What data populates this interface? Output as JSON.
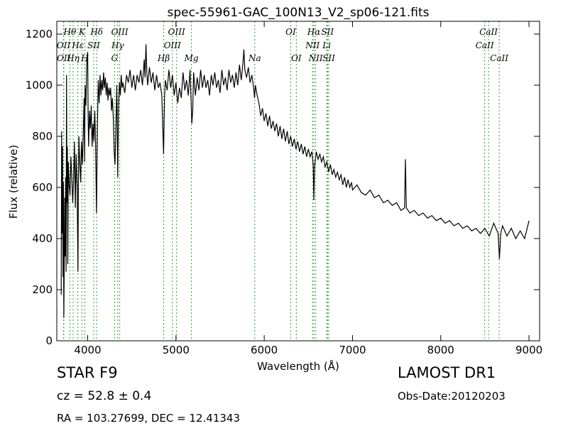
{
  "chart_data": {
    "type": "line",
    "title": "spec-55961-GAC_100N13_V2_sp06-121.fits",
    "xlabel": "Wavelength (Å)",
    "ylabel": "Flux (relative)",
    "xlim": [
      3650,
      9120
    ],
    "ylim": [
      0,
      1250
    ],
    "xticks": [
      4000,
      5000,
      6000,
      7000,
      8000,
      9000
    ],
    "yticks": [
      0,
      200,
      400,
      600,
      800,
      1000,
      1200
    ],
    "grid": false,
    "series": [
      {
        "color": "#000000",
        "points": [
          [
            3700,
            180
          ],
          [
            3705,
            820
          ],
          [
            3710,
            420
          ],
          [
            3715,
            760
          ],
          [
            3720,
            250
          ],
          [
            3725,
            620
          ],
          [
            3730,
            90
          ],
          [
            3740,
            560
          ],
          [
            3745,
            330
          ],
          [
            3750,
            640
          ],
          [
            3755,
            270
          ],
          [
            3760,
            1040
          ],
          [
            3765,
            540
          ],
          [
            3770,
            760
          ],
          [
            3775,
            300
          ],
          [
            3780,
            700
          ],
          [
            3790,
            610
          ],
          [
            3800,
            570
          ],
          [
            3810,
            720
          ],
          [
            3820,
            640
          ],
          [
            3830,
            540
          ],
          [
            3840,
            630
          ],
          [
            3850,
            780
          ],
          [
            3860,
            520
          ],
          [
            3870,
            730
          ],
          [
            3880,
            610
          ],
          [
            3890,
            270
          ],
          [
            3895,
            640
          ],
          [
            3900,
            800
          ],
          [
            3910,
            700
          ],
          [
            3920,
            620
          ],
          [
            3930,
            780
          ],
          [
            3940,
            690
          ],
          [
            3950,
            820
          ],
          [
            3960,
            950
          ],
          [
            3965,
            700
          ],
          [
            3970,
            1000
          ],
          [
            3980,
            920
          ],
          [
            3990,
            1100
          ],
          [
            4000,
            1130
          ],
          [
            4005,
            880
          ],
          [
            4010,
            760
          ],
          [
            4020,
            900
          ],
          [
            4030,
            830
          ],
          [
            4040,
            920
          ],
          [
            4050,
            760
          ],
          [
            4060,
            850
          ],
          [
            4070,
            780
          ],
          [
            4080,
            900
          ],
          [
            4090,
            760
          ],
          [
            4100,
            500
          ],
          [
            4110,
            840
          ],
          [
            4120,
            1020
          ],
          [
            4130,
            930
          ],
          [
            4140,
            1040
          ],
          [
            4150,
            960
          ],
          [
            4160,
            1020
          ],
          [
            4170,
            980
          ],
          [
            4180,
            1050
          ],
          [
            4190,
            990
          ],
          [
            4200,
            1030
          ],
          [
            4210,
            960
          ],
          [
            4220,
            1010
          ],
          [
            4230,
            940
          ],
          [
            4240,
            990
          ],
          [
            4250,
            960
          ],
          [
            4260,
            990
          ],
          [
            4270,
            900
          ],
          [
            4280,
            950
          ],
          [
            4290,
            870
          ],
          [
            4300,
            740
          ],
          [
            4310,
            690
          ],
          [
            4320,
            850
          ],
          [
            4330,
            1000
          ],
          [
            4340,
            640
          ],
          [
            4350,
            920
          ],
          [
            4360,
            1010
          ],
          [
            4370,
            960
          ],
          [
            4380,
            1040
          ],
          [
            4390,
            990
          ],
          [
            4400,
            1010
          ],
          [
            4420,
            970
          ],
          [
            4440,
            1040
          ],
          [
            4460,
            1010
          ],
          [
            4480,
            1060
          ],
          [
            4500,
            990
          ],
          [
            4520,
            1040
          ],
          [
            4540,
            980
          ],
          [
            4560,
            1040
          ],
          [
            4580,
            1010
          ],
          [
            4600,
            1060
          ],
          [
            4620,
            1000
          ],
          [
            4640,
            1100
          ],
          [
            4650,
            1030
          ],
          [
            4660,
            1160
          ],
          [
            4670,
            1050
          ],
          [
            4680,
            1000
          ],
          [
            4700,
            1070
          ],
          [
            4720,
            1010
          ],
          [
            4740,
            1050
          ],
          [
            4760,
            980
          ],
          [
            4780,
            1040
          ],
          [
            4800,
            990
          ],
          [
            4820,
            1010
          ],
          [
            4840,
            960
          ],
          [
            4860,
            730
          ],
          [
            4870,
            950
          ],
          [
            4880,
            1020
          ],
          [
            4900,
            980
          ],
          [
            4920,
            1060
          ],
          [
            4940,
            990
          ],
          [
            4960,
            1040
          ],
          [
            4980,
            960
          ],
          [
            5000,
            1010
          ],
          [
            5020,
            930
          ],
          [
            5040,
            990
          ],
          [
            5060,
            950
          ],
          [
            5080,
            1050
          ],
          [
            5100,
            980
          ],
          [
            5120,
            1020
          ],
          [
            5140,
            960
          ],
          [
            5160,
            1060
          ],
          [
            5180,
            850
          ],
          [
            5190,
            900
          ],
          [
            5200,
            1050
          ],
          [
            5220,
            960
          ],
          [
            5240,
            1030
          ],
          [
            5260,
            980
          ],
          [
            5280,
            1060
          ],
          [
            5300,
            990
          ],
          [
            5320,
            1040
          ],
          [
            5340,
            990
          ],
          [
            5360,
            1020
          ],
          [
            5380,
            960
          ],
          [
            5400,
            1040
          ],
          [
            5420,
            1000
          ],
          [
            5440,
            1050
          ],
          [
            5460,
            990
          ],
          [
            5480,
            1020
          ],
          [
            5500,
            970
          ],
          [
            5520,
            1060
          ],
          [
            5540,
            1000
          ],
          [
            5560,
            1030
          ],
          [
            5580,
            980
          ],
          [
            5600,
            1060
          ],
          [
            5620,
            1010
          ],
          [
            5640,
            1040
          ],
          [
            5660,
            990
          ],
          [
            5680,
            1050
          ],
          [
            5700,
            1000
          ],
          [
            5720,
            1080
          ],
          [
            5740,
            1020
          ],
          [
            5760,
            1090
          ],
          [
            5770,
            1140
          ],
          [
            5780,
            1060
          ],
          [
            5800,
            1030
          ],
          [
            5820,
            1070
          ],
          [
            5840,
            1010
          ],
          [
            5860,
            1040
          ],
          [
            5880,
            990
          ],
          [
            5890,
            950
          ],
          [
            5900,
            1000
          ],
          [
            5920,
            960
          ],
          [
            5940,
            930
          ],
          [
            5960,
            880
          ],
          [
            5980,
            910
          ],
          [
            6000,
            860
          ],
          [
            6020,
            890
          ],
          [
            6040,
            840
          ],
          [
            6060,
            880
          ],
          [
            6080,
            830
          ],
          [
            6100,
            860
          ],
          [
            6120,
            820
          ],
          [
            6140,
            850
          ],
          [
            6160,
            800
          ],
          [
            6180,
            840
          ],
          [
            6200,
            790
          ],
          [
            6220,
            830
          ],
          [
            6240,
            780
          ],
          [
            6260,
            820
          ],
          [
            6280,
            770
          ],
          [
            6300,
            800
          ],
          [
            6320,
            760
          ],
          [
            6340,
            790
          ],
          [
            6360,
            750
          ],
          [
            6380,
            780
          ],
          [
            6400,
            740
          ],
          [
            6420,
            770
          ],
          [
            6440,
            730
          ],
          [
            6460,
            760
          ],
          [
            6480,
            720
          ],
          [
            6500,
            750
          ],
          [
            6520,
            720
          ],
          [
            6540,
            740
          ],
          [
            6555,
            690
          ],
          [
            6563,
            550
          ],
          [
            6570,
            680
          ],
          [
            6590,
            740
          ],
          [
            6610,
            710
          ],
          [
            6630,
            730
          ],
          [
            6650,
            700
          ],
          [
            6670,
            720
          ],
          [
            6690,
            680
          ],
          [
            6710,
            700
          ],
          [
            6730,
            660
          ],
          [
            6750,
            690
          ],
          [
            6770,
            650
          ],
          [
            6790,
            670
          ],
          [
            6810,
            640
          ],
          [
            6830,
            660
          ],
          [
            6850,
            630
          ],
          [
            6870,
            650
          ],
          [
            6890,
            610
          ],
          [
            6910,
            640
          ],
          [
            6930,
            600
          ],
          [
            6950,
            630
          ],
          [
            6970,
            600
          ],
          [
            6990,
            620
          ],
          [
            7000,
            590
          ],
          [
            7050,
            610
          ],
          [
            7100,
            580
          ],
          [
            7150,
            570
          ],
          [
            7200,
            590
          ],
          [
            7250,
            560
          ],
          [
            7300,
            570
          ],
          [
            7350,
            540
          ],
          [
            7400,
            550
          ],
          [
            7450,
            530
          ],
          [
            7500,
            540
          ],
          [
            7550,
            510
          ],
          [
            7590,
            520
          ],
          [
            7600,
            710
          ],
          [
            7610,
            520
          ],
          [
            7650,
            500
          ],
          [
            7700,
            510
          ],
          [
            7750,
            490
          ],
          [
            7800,
            500
          ],
          [
            7850,
            480
          ],
          [
            7900,
            490
          ],
          [
            7950,
            470
          ],
          [
            8000,
            480
          ],
          [
            8050,
            460
          ],
          [
            8100,
            470
          ],
          [
            8150,
            450
          ],
          [
            8200,
            460
          ],
          [
            8250,
            440
          ],
          [
            8300,
            450
          ],
          [
            8350,
            430
          ],
          [
            8400,
            440
          ],
          [
            8450,
            420
          ],
          [
            8500,
            440
          ],
          [
            8550,
            410
          ],
          [
            8600,
            460
          ],
          [
            8650,
            420
          ],
          [
            8665,
            320
          ],
          [
            8680,
            420
          ],
          [
            8700,
            450
          ],
          [
            8750,
            410
          ],
          [
            8800,
            440
          ],
          [
            8850,
            400
          ],
          [
            8900,
            430
          ],
          [
            8950,
            400
          ],
          [
            9000,
            470
          ]
        ]
      }
    ],
    "spectral_lines": [
      {
        "label": "Hθ",
        "x": 3798,
        "row": 0
      },
      {
        "label": "K",
        "x": 3934,
        "row": 0
      },
      {
        "label": "Hδ",
        "x": 4102,
        "row": 0
      },
      {
        "label": "OIII",
        "x": 4363,
        "row": 0
      },
      {
        "label": "OIII",
        "x": 5007,
        "row": 0
      },
      {
        "label": "OI",
        "x": 6300,
        "row": 0
      },
      {
        "label": "Hα",
        "x": 6563,
        "row": 0
      },
      {
        "label": "SII",
        "x": 6717,
        "row": 0
      },
      {
        "label": "CaII",
        "x": 8542,
        "row": 0
      },
      {
        "label": "OII",
        "x": 3727,
        "row": 1
      },
      {
        "label": "Hε",
        "x": 3889,
        "row": 1
      },
      {
        "label": "SII",
        "x": 4068,
        "row": 1
      },
      {
        "label": "Hγ",
        "x": 4340,
        "row": 1
      },
      {
        "label": "OIII",
        "x": 4959,
        "row": 1
      },
      {
        "label": "NII",
        "x": 6548,
        "row": 1
      },
      {
        "label": "Li",
        "x": 6708,
        "row": 1
      },
      {
        "label": "CaII",
        "x": 8498,
        "row": 1
      },
      {
        "label": "OII",
        "x": 3729,
        "row": 2
      },
      {
        "label": "Hη",
        "x": 3835,
        "row": 2
      },
      {
        "label": "H",
        "x": 3968,
        "row": 2
      },
      {
        "label": "G",
        "x": 4304,
        "row": 2
      },
      {
        "label": "Hβ",
        "x": 4861,
        "row": 2
      },
      {
        "label": "Mg",
        "x": 5175,
        "row": 2
      },
      {
        "label": "Na",
        "x": 5893,
        "row": 2
      },
      {
        "label": "OI",
        "x": 6364,
        "row": 2
      },
      {
        "label": "NII",
        "x": 6583,
        "row": 2
      },
      {
        "label": "SII",
        "x": 6731,
        "row": 2
      },
      {
        "label": "CaII",
        "x": 8662,
        "row": 2
      }
    ],
    "line_marker_color": "#2ca02c"
  },
  "info": {
    "object_class": "STAR   F9",
    "survey": "LAMOST DR1",
    "redshift": "cz = 52.8 ± 0.4",
    "obs_date": "Obs-Date:20120203",
    "coords": "RA = 103.27699, DEC = 12.41343"
  }
}
